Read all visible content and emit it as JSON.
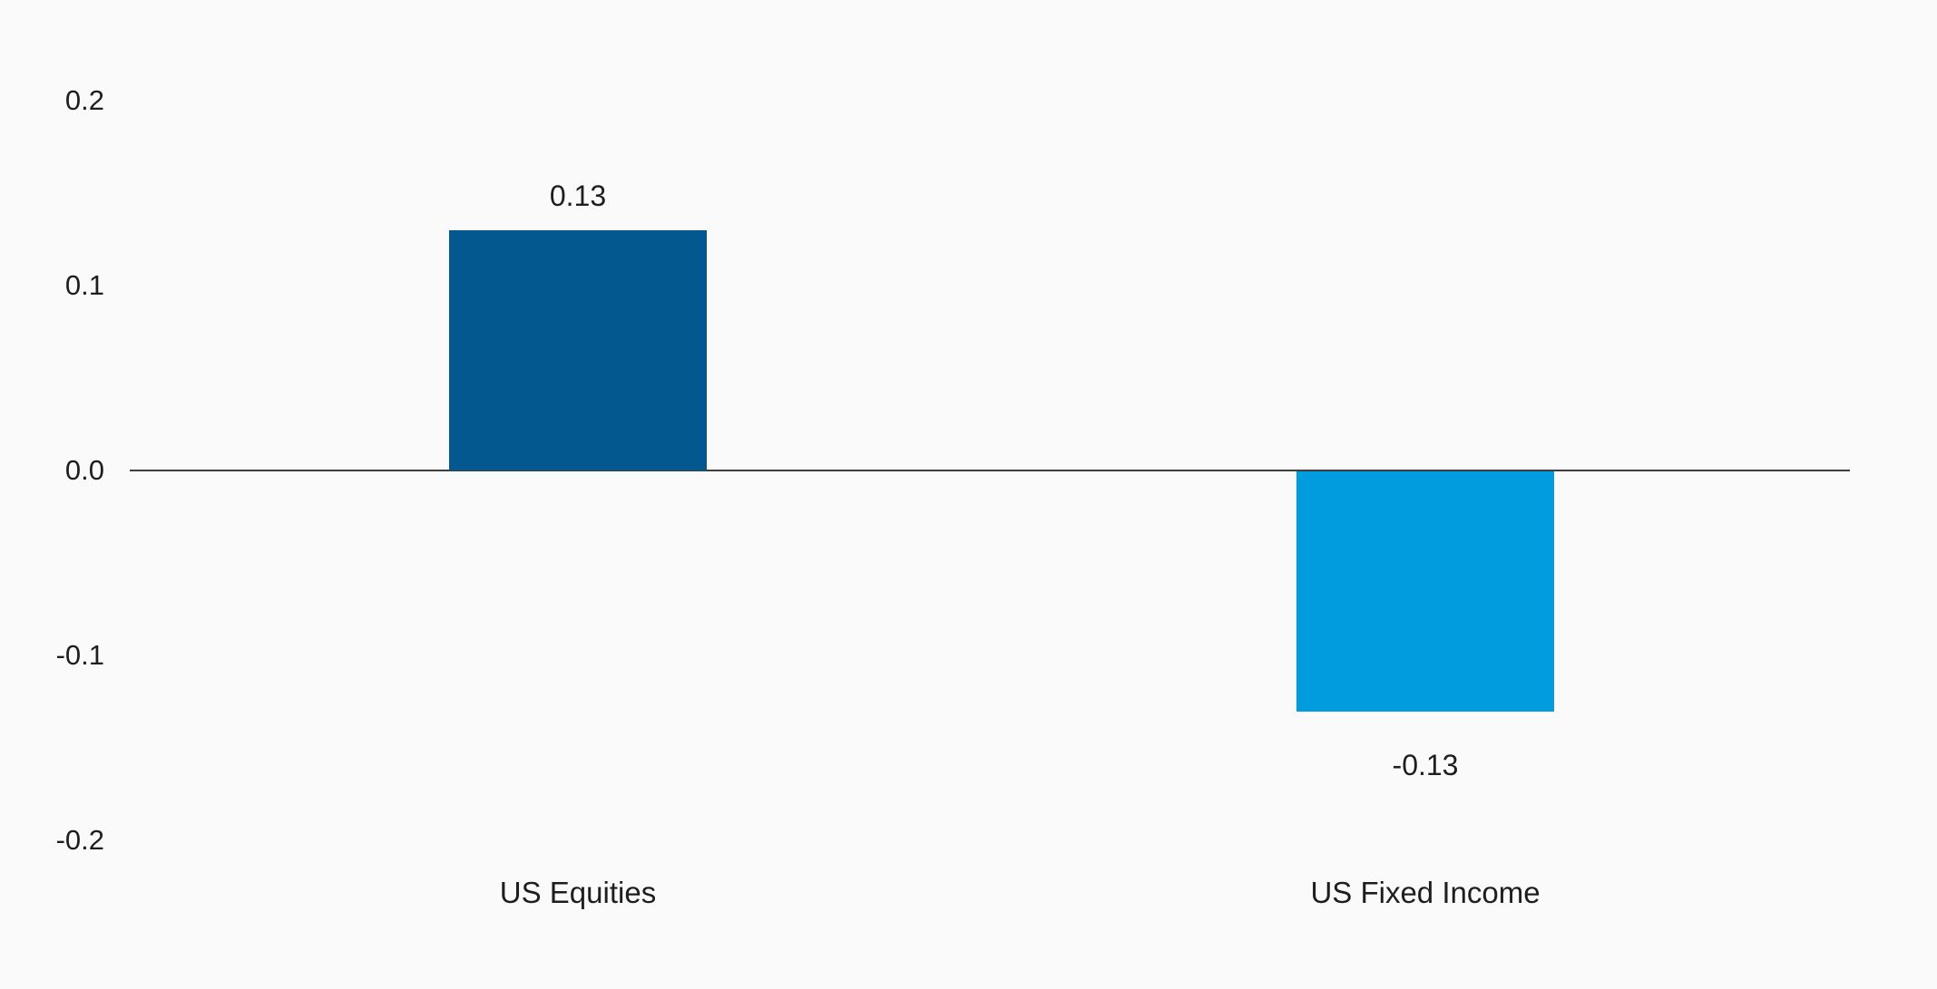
{
  "chart_data": {
    "type": "bar",
    "title": "",
    "xlabel": "",
    "ylabel": "",
    "categories": [
      "US Equities",
      "US Fixed Income"
    ],
    "values": [
      0.13,
      -0.13
    ],
    "value_labels": [
      "0.13",
      "-0.13"
    ],
    "series": [
      {
        "name": "US Equities",
        "value": 0.13,
        "color": "#02588f"
      },
      {
        "name": "US Fixed Income",
        "value": -0.13,
        "color": "#009cde"
      }
    ],
    "bar_colors": [
      "#02588f",
      "#009cde"
    ],
    "yticks": [
      {
        "value": 0.2,
        "label": "0.2"
      },
      {
        "value": 0.1,
        "label": "0.1"
      },
      {
        "value": 0.0,
        "label": "0.0"
      },
      {
        "value": -0.1,
        "label": "-0.1"
      },
      {
        "value": -0.2,
        "label": "-0.2"
      }
    ],
    "ylim": [
      -0.2,
      0.2
    ],
    "grid": false,
    "legend": "none",
    "zero_line_color": "#3d3d3d",
    "background_color": "#fafafa",
    "text_color": "#1e1e1e"
  }
}
